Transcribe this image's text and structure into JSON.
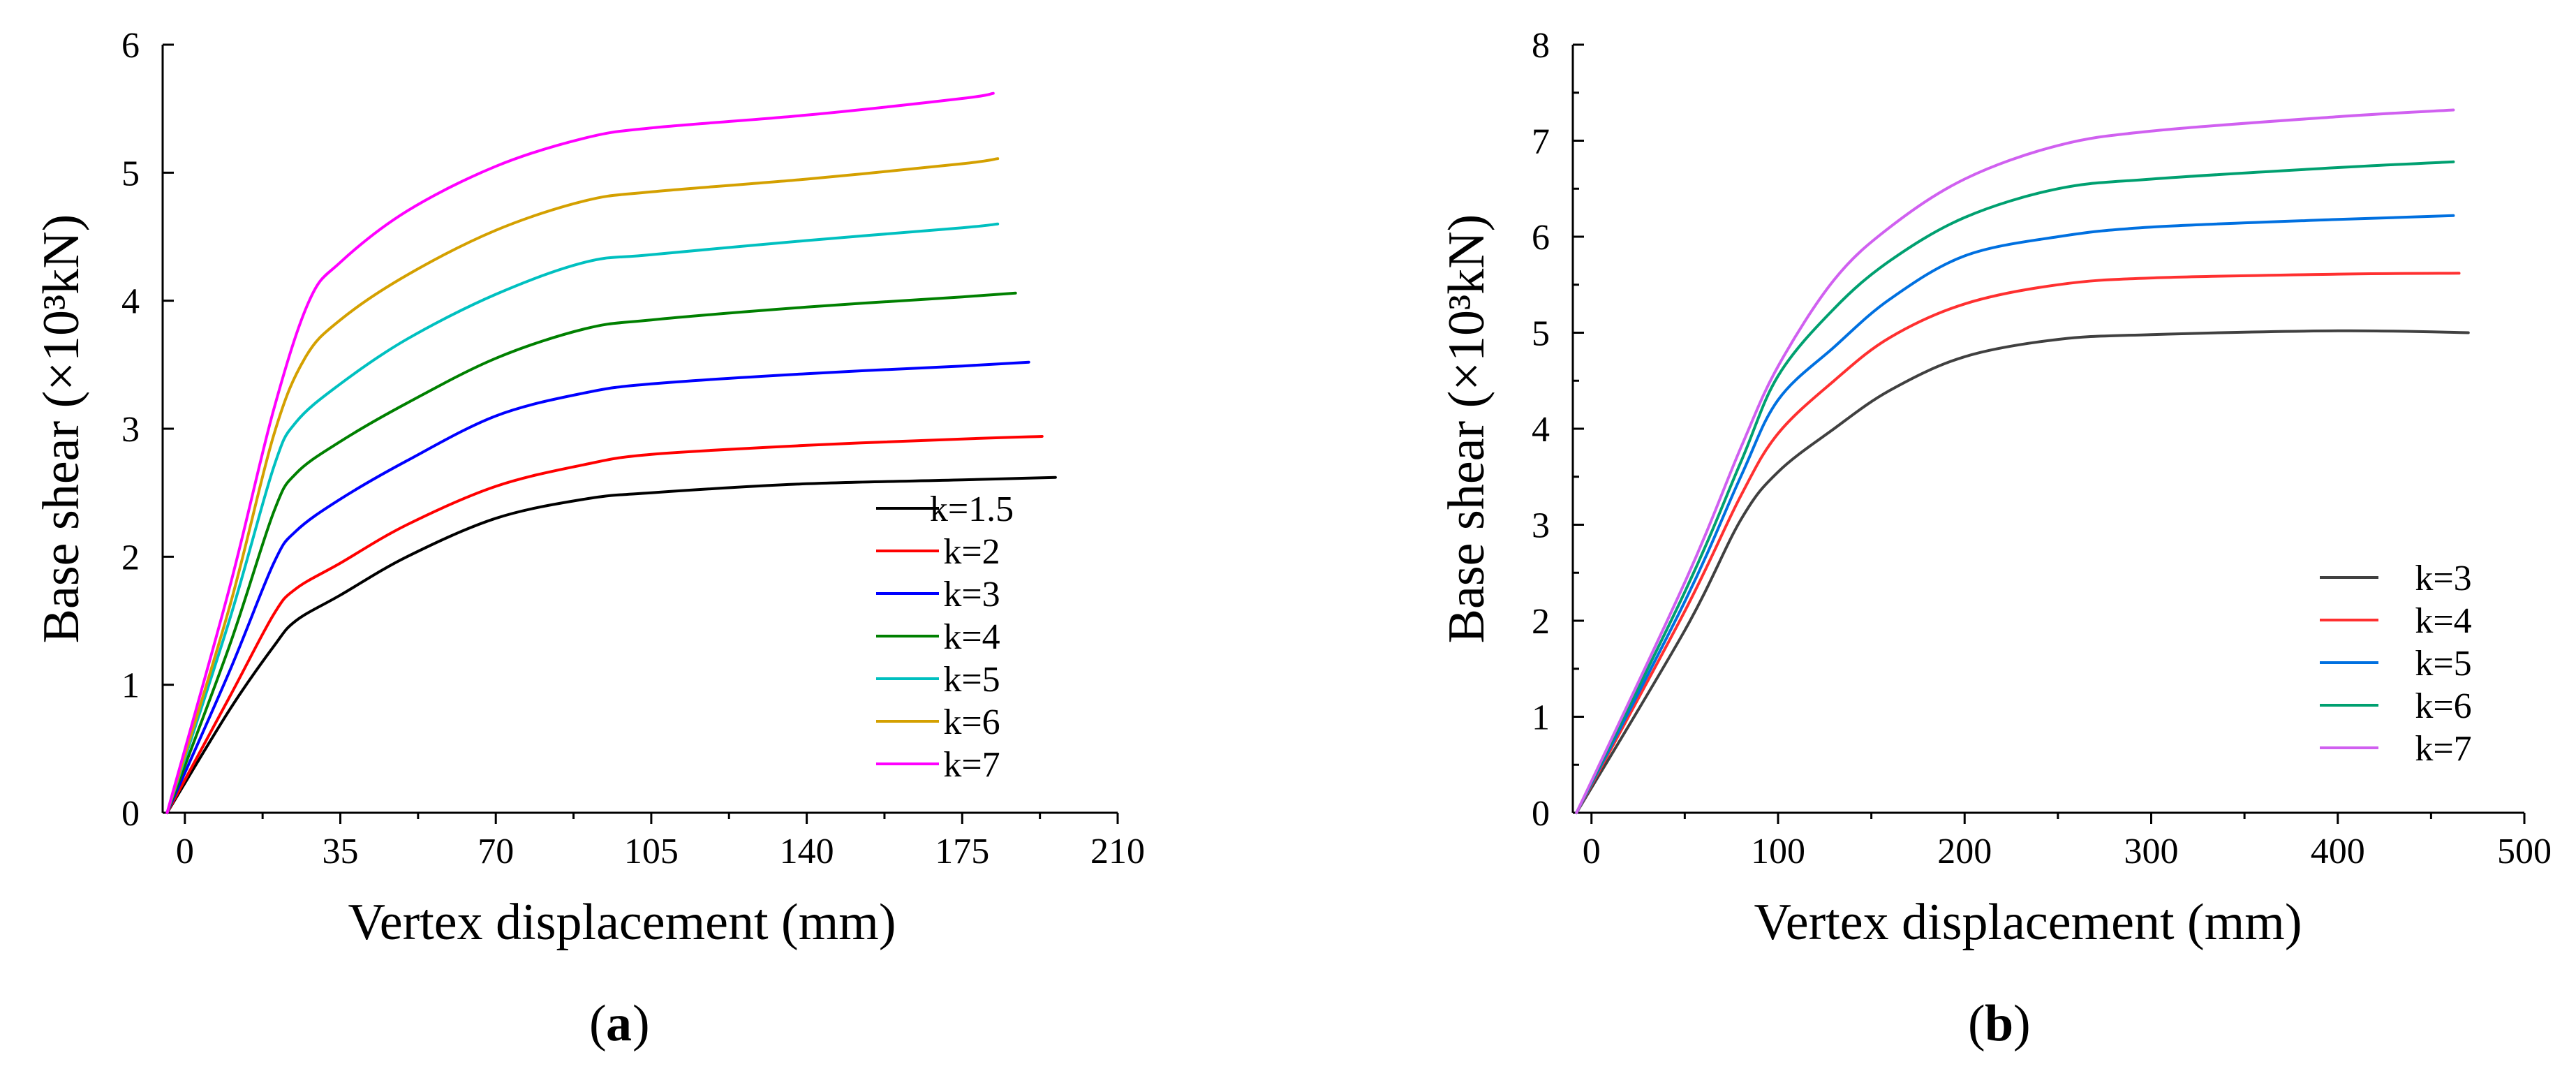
{
  "chart_data": [
    {
      "type": "line",
      "panel_label": "a",
      "title": "",
      "xlabel": "Vertex  displacement (mm)",
      "ylabel": "Base shear (×10³kN)",
      "xlim": [
        -5,
        210
      ],
      "ylim": [
        0,
        6
      ],
      "xticks": [
        0,
        35,
        70,
        105,
        140,
        175,
        210
      ],
      "yticks": [
        0,
        1,
        2,
        3,
        4,
        5,
        6
      ],
      "xtick_labels": [
        "0",
        "35",
        "70",
        "105",
        "140",
        "175",
        "210"
      ],
      "ytick_labels": [
        "0",
        "1",
        "2",
        "3",
        "4",
        "5",
        "6"
      ],
      "legend_position": "bottom-right",
      "series": [
        {
          "name": "k=1.5",
          "color": "#000000",
          "x": [
            -4,
            10,
            20,
            25,
            35,
            50,
            70,
            90,
            105,
            140,
            175,
            196
          ],
          "y": [
            0,
            0.8,
            1.3,
            1.5,
            1.7,
            2.0,
            2.3,
            2.45,
            2.5,
            2.57,
            2.6,
            2.62
          ]
        },
        {
          "name": "k=2",
          "color": "#ff0000",
          "x": [
            -4,
            10,
            20,
            25,
            35,
            50,
            70,
            90,
            105,
            140,
            175,
            193
          ],
          "y": [
            0,
            0.9,
            1.55,
            1.75,
            1.95,
            2.25,
            2.55,
            2.72,
            2.8,
            2.87,
            2.92,
            2.94
          ]
        },
        {
          "name": "k=3",
          "color": "#0000ff",
          "x": [
            -4,
            10,
            20,
            25,
            35,
            50,
            70,
            90,
            105,
            140,
            175,
            190
          ],
          "y": [
            0,
            1.1,
            1.95,
            2.2,
            2.45,
            2.75,
            3.1,
            3.28,
            3.35,
            3.43,
            3.49,
            3.52
          ]
        },
        {
          "name": "k=4",
          "color": "#008000",
          "x": [
            -4,
            10,
            20,
            25,
            35,
            50,
            70,
            90,
            105,
            140,
            175,
            187
          ],
          "y": [
            0,
            1.3,
            2.35,
            2.65,
            2.9,
            3.2,
            3.55,
            3.78,
            3.85,
            3.95,
            4.03,
            4.06
          ]
        },
        {
          "name": "k=5",
          "color": "#00c0c0",
          "x": [
            -4,
            10,
            20,
            25,
            35,
            50,
            70,
            90,
            105,
            140,
            175,
            183
          ],
          "y": [
            0,
            1.5,
            2.7,
            3.05,
            3.35,
            3.7,
            4.05,
            4.3,
            4.36,
            4.47,
            4.57,
            4.6
          ]
        },
        {
          "name": "k=6",
          "color": "#d4a000",
          "x": [
            -4,
            10,
            20,
            27,
            35,
            50,
            70,
            90,
            105,
            140,
            175,
            183
          ],
          "y": [
            0,
            1.6,
            2.95,
            3.55,
            3.85,
            4.2,
            4.55,
            4.78,
            4.85,
            4.95,
            5.07,
            5.11
          ]
        },
        {
          "name": "k=7",
          "color": "#ff00ff",
          "x": [
            -4,
            10,
            20,
            28,
            35,
            50,
            70,
            90,
            105,
            140,
            175,
            182
          ],
          "y": [
            0,
            1.75,
            3.15,
            4.0,
            4.3,
            4.7,
            5.05,
            5.27,
            5.35,
            5.45,
            5.58,
            5.62
          ]
        }
      ]
    },
    {
      "type": "line",
      "panel_label": "b",
      "title": "",
      "xlabel": "Vertex  displacement (mm)",
      "ylabel": "Base shear (×10³kN)",
      "xlim": [
        -10,
        500
      ],
      "ylim": [
        0,
        8
      ],
      "xticks": [
        0,
        100,
        200,
        300,
        400,
        500
      ],
      "yticks": [
        0,
        1,
        2,
        3,
        4,
        5,
        6,
        7,
        8
      ],
      "xtick_labels": [
        "0",
        "100",
        "200",
        "300",
        "400",
        "500"
      ],
      "ytick_labels": [
        "0",
        "1",
        "2",
        "3",
        "4",
        "5",
        "6",
        "7",
        "8"
      ],
      "legend_position": "bottom-right",
      "series": [
        {
          "name": "k=3",
          "color": "#404040",
          "x": [
            -8,
            50,
            80,
            100,
            130,
            160,
            200,
            250,
            300,
            400,
            470
          ],
          "y": [
            0,
            1.9,
            3.05,
            3.55,
            4.0,
            4.4,
            4.75,
            4.93,
            4.98,
            5.02,
            5.0
          ]
        },
        {
          "name": "k=4",
          "color": "#ff3030",
          "x": [
            -8,
            50,
            80,
            100,
            130,
            160,
            200,
            250,
            300,
            400,
            465
          ],
          "y": [
            0,
            2.1,
            3.3,
            3.95,
            4.5,
            4.95,
            5.3,
            5.5,
            5.57,
            5.61,
            5.62
          ]
        },
        {
          "name": "k=5",
          "color": "#0070e0",
          "x": [
            -8,
            50,
            80,
            100,
            130,
            160,
            200,
            250,
            300,
            400,
            462
          ],
          "y": [
            0,
            2.2,
            3.5,
            4.3,
            4.85,
            5.35,
            5.8,
            6.0,
            6.1,
            6.18,
            6.22
          ]
        },
        {
          "name": "k=6",
          "color": "#00a070",
          "x": [
            -8,
            50,
            80,
            100,
            130,
            160,
            200,
            250,
            300,
            400,
            462
          ],
          "y": [
            0,
            2.3,
            3.65,
            4.55,
            5.25,
            5.75,
            6.2,
            6.5,
            6.6,
            6.72,
            6.78
          ]
        },
        {
          "name": "k=7",
          "color": "#d060f0",
          "x": [
            -8,
            50,
            80,
            100,
            130,
            160,
            200,
            250,
            300,
            400,
            462
          ],
          "y": [
            0,
            2.4,
            3.8,
            4.65,
            5.55,
            6.1,
            6.6,
            6.95,
            7.1,
            7.25,
            7.32
          ]
        }
      ]
    }
  ]
}
